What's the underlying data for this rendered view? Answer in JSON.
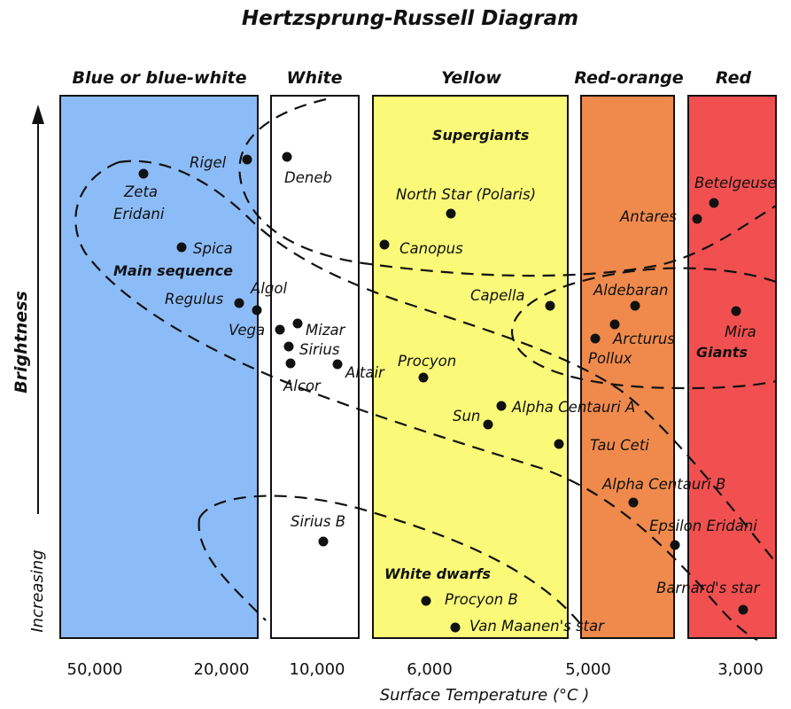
{
  "title": "Hertzsprung-Russell Diagram",
  "colors": {
    "blue": "#8cbcf8",
    "white": "#ffffff",
    "yellow": "#fafa78",
    "red_orange": "#f08a4c",
    "red": "#f25050"
  },
  "columns": [
    {
      "label": "Blue or blue-white",
      "color": "#8cbcf8"
    },
    {
      "label": "White",
      "color": "#ffffff"
    },
    {
      "label": "Yellow",
      "color": "#fafa78"
    },
    {
      "label": "Red-orange",
      "color": "#f08a4c"
    },
    {
      "label": "Red",
      "color": "#f25050"
    }
  ],
  "regions": {
    "supergiants": "Supergiants",
    "main_sequence": "Main sequence",
    "giants": "Giants",
    "white_dwarfs": "White dwarfs"
  },
  "x_axis": {
    "title": "Surface Temperature (°C )",
    "ticks": [
      "50,000",
      "20,000",
      "10,000",
      "6,000",
      "5,000",
      "3,000"
    ]
  },
  "y_axis": {
    "word1": "Brightness",
    "word2": "Increasing"
  },
  "stars": [
    {
      "name": "Rigel"
    },
    {
      "name": "Deneb"
    },
    {
      "name": "Zeta"
    },
    {
      "name": "Eridani"
    },
    {
      "name": "Spica"
    },
    {
      "name": "Regulus"
    },
    {
      "name": "Algol"
    },
    {
      "name": "Vega"
    },
    {
      "name": "Mizar"
    },
    {
      "name": "Sirius"
    },
    {
      "name": "Altair"
    },
    {
      "name": "Alcor"
    },
    {
      "name": "North Star (Polaris)"
    },
    {
      "name": "Canopus"
    },
    {
      "name": "Capella"
    },
    {
      "name": "Procyon"
    },
    {
      "name": "Sun"
    },
    {
      "name": "Alpha Centauri A"
    },
    {
      "name": "Tau Ceti"
    },
    {
      "name": "Sirius B"
    },
    {
      "name": "Procyon B"
    },
    {
      "name": "Van Maanen's star"
    },
    {
      "name": "Betelgeuse"
    },
    {
      "name": "Antares"
    },
    {
      "name": "Aldebaran"
    },
    {
      "name": "Arcturus"
    },
    {
      "name": "Pollux"
    },
    {
      "name": "Mira"
    },
    {
      "name": "Alpha Centauri B"
    },
    {
      "name": "Epsilon Eridani"
    },
    {
      "name": "Barnard's star"
    }
  ]
}
